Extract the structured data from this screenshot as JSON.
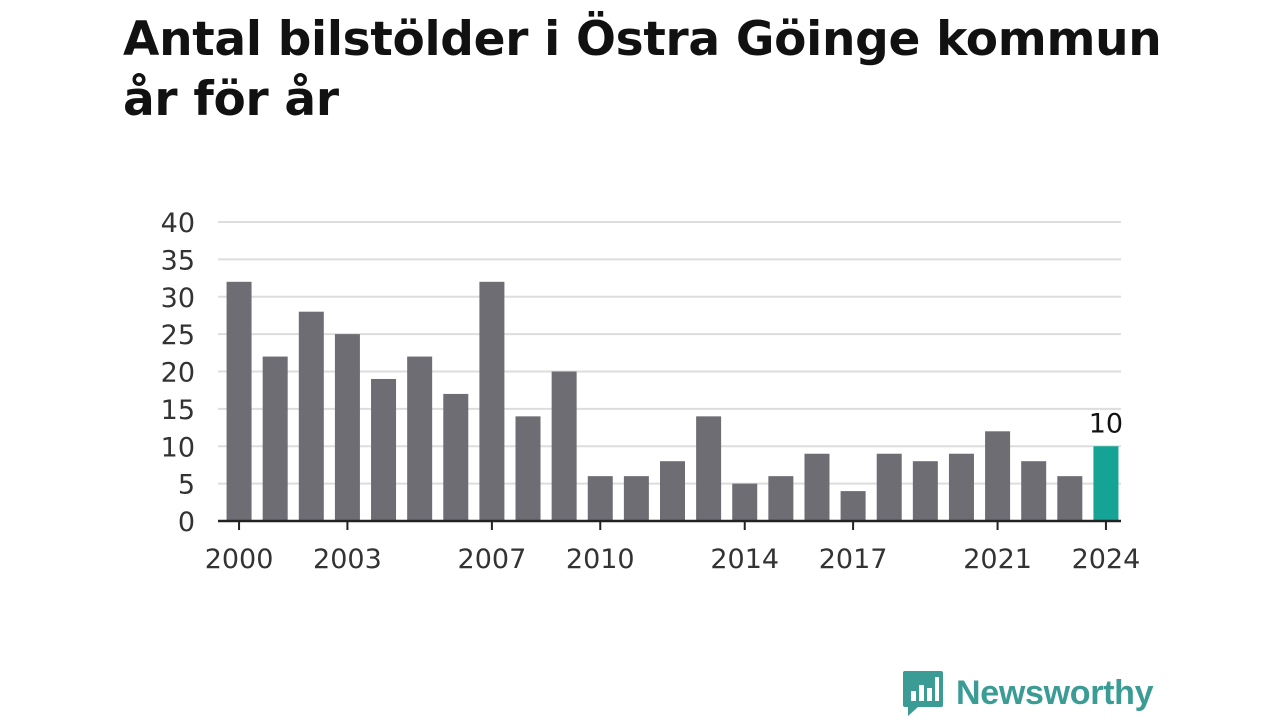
{
  "title_line1": "Antal bilstölder i Östra Göinge kommun",
  "title_line2": "år för år",
  "brand": "Newsworthy",
  "colors": {
    "bar": "#6e6d73",
    "highlight": "#14a394",
    "grid": "#dddddd",
    "axis": "#222222",
    "tick_text": "#333333",
    "brand": "#3a9c95"
  },
  "chart_data": {
    "type": "bar",
    "categories": [
      "2000",
      "2001",
      "2002",
      "2003",
      "2004",
      "2005",
      "2006",
      "2007",
      "2008",
      "2009",
      "2010",
      "2011",
      "2012",
      "2013",
      "2014",
      "2015",
      "2016",
      "2017",
      "2018",
      "2019",
      "2020",
      "2021",
      "2022",
      "2023",
      "2024"
    ],
    "values": [
      32,
      22,
      28,
      25,
      19,
      22,
      17,
      32,
      14,
      20,
      6,
      6,
      8,
      14,
      5,
      6,
      9,
      4,
      9,
      8,
      9,
      12,
      8,
      6,
      10
    ],
    "x_tick_labels": [
      "2000",
      "2003",
      "2007",
      "2010",
      "2014",
      "2017",
      "2021",
      "2024"
    ],
    "y_ticks": [
      0,
      5,
      10,
      15,
      20,
      25,
      30,
      35,
      40
    ],
    "ylim": [
      0,
      40
    ],
    "highlight_category": "2024",
    "highlight_label": "10",
    "grid": true,
    "legend": "none"
  }
}
